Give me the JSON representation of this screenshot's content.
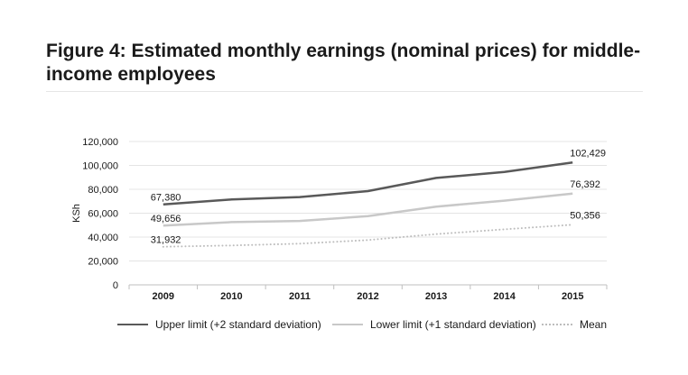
{
  "title": "Figure 4: Estimated monthly earnings (nominal prices) for middle-income employees",
  "chart_data": {
    "type": "line",
    "title": "Figure 4: Estimated monthly earnings (nominal prices) for middle-income employees",
    "xlabel": "",
    "ylabel": "KSh",
    "categories": [
      "2009",
      "2010",
      "2011",
      "2012",
      "2013",
      "2014",
      "2015"
    ],
    "ylim": [
      0,
      120000
    ],
    "yticks": [
      0,
      20000,
      40000,
      60000,
      80000,
      100000,
      120000
    ],
    "ytick_labels": [
      "0",
      "20,000",
      "40,000",
      "60,000",
      "80,000",
      "100,000",
      "120,000"
    ],
    "grid": true,
    "legend_position": "bottom",
    "series": [
      {
        "name": "Upper limit (+2 standard deviation)",
        "values": [
          67380,
          71500,
          73500,
          78500,
          89500,
          94500,
          102429
        ],
        "color": "#595959",
        "style": "solid",
        "start_label": "67,380",
        "end_label": "102,429"
      },
      {
        "name": "Lower limit (+1 standard deviation)",
        "values": [
          49656,
          52500,
          53500,
          57500,
          65500,
          70500,
          76392
        ],
        "color": "#c8c8c8",
        "style": "solid",
        "start_label": "49,656",
        "end_label": "76,392"
      },
      {
        "name": "Mean",
        "values": [
          31932,
          33000,
          34500,
          37500,
          42500,
          46500,
          50356
        ],
        "color": "#bdbdbd",
        "style": "dotted",
        "start_label": "31,932",
        "end_label": "50,356"
      }
    ]
  }
}
